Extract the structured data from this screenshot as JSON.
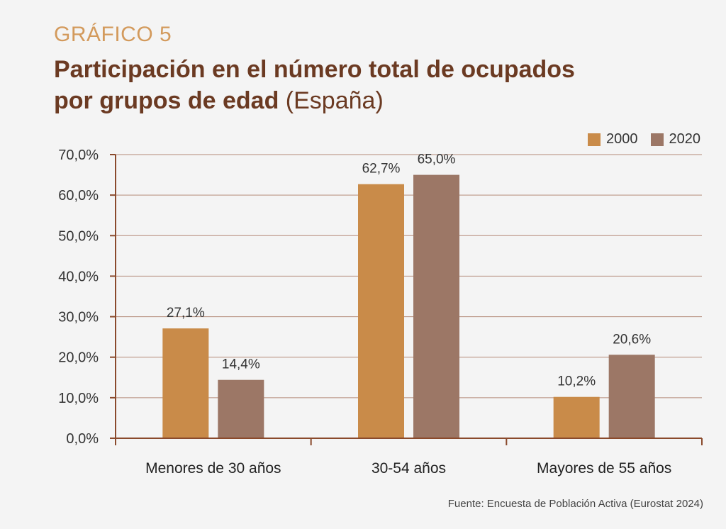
{
  "header": {
    "kicker": "GRÁFICO 5",
    "title_line1": "Participación en el número total de ocupados",
    "title_line2_bold": "por grupos de edad",
    "title_line2_light": " (España)"
  },
  "source": "Fuente: Encuesta de Población Activa (Eurostat 2024)",
  "colors": {
    "s2000": "#c98b49",
    "s2020": "#9c7766",
    "grid": "#b38a78",
    "axis": "#8a4a2c"
  },
  "chart_data": {
    "type": "bar",
    "categories": [
      "Menores de 30 años",
      "30-54 años",
      "Mayores de 55 años"
    ],
    "series": [
      {
        "name": "2000",
        "values": [
          27.1,
          62.7,
          10.2
        ],
        "labels": [
          "27,1%",
          "62,7%",
          "10,2%"
        ]
      },
      {
        "name": "2020",
        "values": [
          14.4,
          65.0,
          20.6
        ],
        "labels": [
          "14,4%",
          "65,0%",
          "20,6%"
        ]
      }
    ],
    "ylim": [
      0,
      70
    ],
    "yticks": [
      0,
      10,
      20,
      30,
      40,
      50,
      60,
      70
    ],
    "ytick_labels": [
      "0,0%",
      "10,0%",
      "20,0%",
      "30,0%",
      "40,0%",
      "50,0%",
      "60,0%",
      "70,0%"
    ],
    "grid": true,
    "legend_position": "top-right"
  }
}
